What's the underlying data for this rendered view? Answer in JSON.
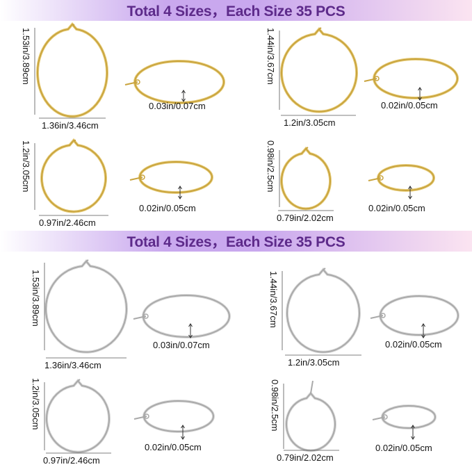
{
  "colors": {
    "banner_gradient_left": "#ffffff",
    "banner_gradient_mid": "#c9a8ee",
    "banner_gradient_right": "#fbe4f1",
    "banner_text": "#5d2a8a",
    "gold": "#c9a43e",
    "gold_light": "#e8cf7f",
    "silver": "#a9a9a9",
    "silver_light": "#d8d8d8",
    "dimension_line": "#555555"
  },
  "sections": [
    {
      "finish": "gold",
      "banner": "Total 4 Sizes，Each Size 35 PCS",
      "items": [
        {
          "height": "1.53in/3.89cm",
          "width": "1.36in/3.46cm",
          "thickness": "0.03in/0.07cm"
        },
        {
          "height": "1.44in/3.67cm",
          "width": "1.2in/3.05cm",
          "thickness": "0.02in/0.05cm"
        },
        {
          "height": "1.2in/3.05cm",
          "width": "0.97in/2.46cm",
          "thickness": "0.02in/0.05cm"
        },
        {
          "height": "0.98in/2.5cm",
          "width": "0.79in/2.02cm",
          "thickness": "0.02in/0.05cm"
        }
      ]
    },
    {
      "finish": "silver",
      "banner": "Total 4 Sizes，Each Size 35 PCS",
      "items": [
        {
          "height": "1.53in/3.89cm",
          "width": "1.36in/3.46cm",
          "thickness": "0.03in/0.07cm"
        },
        {
          "height": "1.44in/3.67cm",
          "width": "1.2in/3.05cm",
          "thickness": "0.02in/0.05cm"
        },
        {
          "height": "1.2in/3.05cm",
          "width": "0.97in/2.46cm",
          "thickness": "0.02in/0.05cm"
        },
        {
          "height": "0.98in/2.5cm",
          "width": "0.79in/2.02cm",
          "thickness": "0.02in/0.05cm"
        }
      ]
    }
  ]
}
